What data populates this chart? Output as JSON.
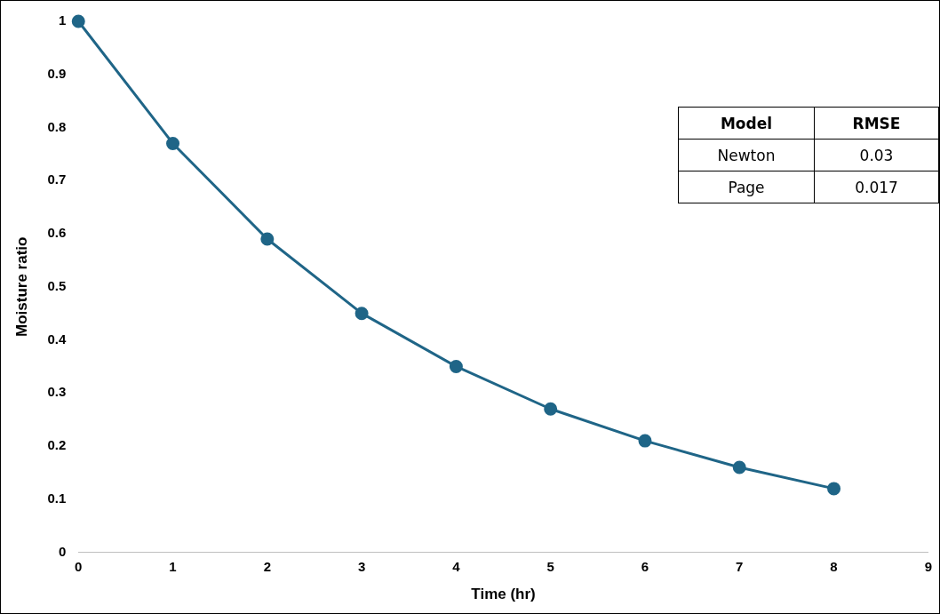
{
  "chart_data": {
    "type": "line",
    "xlabel": "Time (hr)",
    "ylabel": "Moisture ratio",
    "x": [
      0,
      1,
      2,
      3,
      4,
      5,
      6,
      7,
      8
    ],
    "series": [
      {
        "color": "#1f6587",
        "values": [
          1.0,
          0.77,
          0.59,
          0.45,
          0.35,
          0.27,
          0.21,
          0.16,
          0.12
        ]
      }
    ],
    "xlim": [
      0,
      9
    ],
    "xticks": [
      0,
      1,
      2,
      3,
      4,
      5,
      6,
      7,
      8,
      9
    ],
    "ylim": [
      0,
      1
    ],
    "yticks": [
      0,
      0.1,
      0.2,
      0.3,
      0.4,
      0.5,
      0.6,
      0.7,
      0.8,
      0.9,
      1
    ],
    "grid": false,
    "legend": false,
    "marker": "circle",
    "line_style": "solid",
    "annotations": [
      "Model",
      "RMSE",
      "Newton",
      "0.03",
      "Page",
      "0.017"
    ]
  }
}
